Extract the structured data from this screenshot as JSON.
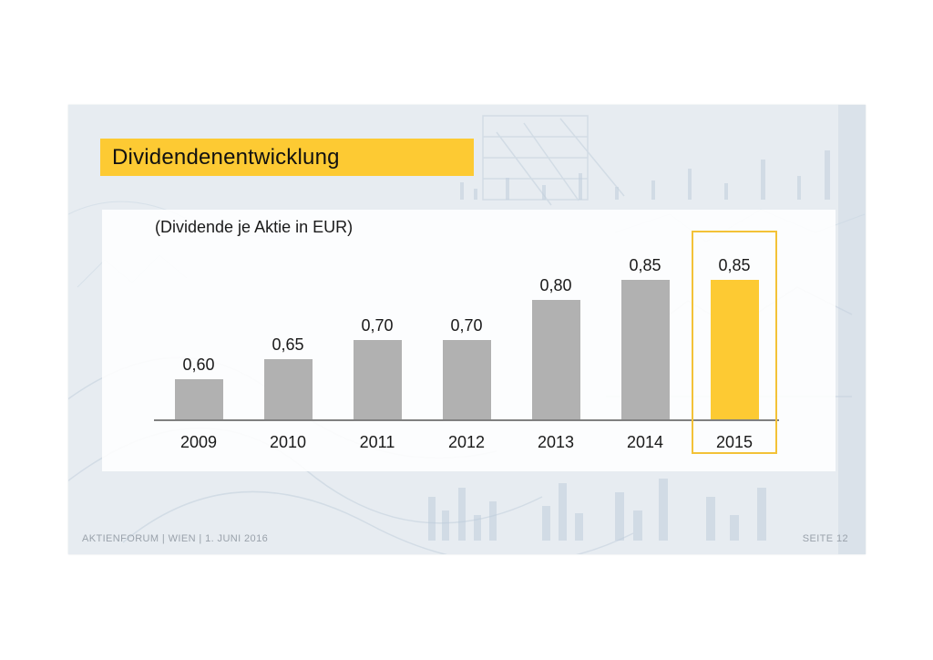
{
  "slide": {
    "title": "Dividendenentwicklung",
    "footer": {
      "left": "AKTIENFORUM | WIEN | 1. JUNI 2016",
      "right": "SEITE 12"
    }
  },
  "colors": {
    "accent_yellow": "#fdca33",
    "highlight_border": "#f3c237",
    "bar_gray": "#b1b1b1",
    "axis_gray": "#808080",
    "slide_background": "#e7ecf1",
    "title_text": "#111111",
    "footer_text": "#9aa2ab"
  },
  "chart_data": {
    "type": "bar",
    "title": "(Dividende je Aktie in EUR)",
    "categories": [
      "2009",
      "2010",
      "2011",
      "2012",
      "2013",
      "2014",
      "2015"
    ],
    "values": [
      0.6,
      0.65,
      0.7,
      0.7,
      0.8,
      0.85,
      0.85
    ],
    "value_labels": [
      "0,60",
      "0,65",
      "0,70",
      "0,70",
      "0,80",
      "0,85",
      "0,85"
    ],
    "highlight_category": "2015",
    "xlabel": "",
    "ylabel": "",
    "ylim": [
      0.5,
      1.026
    ],
    "grid": false,
    "legend": "none",
    "bar_color": "#b1b1b1",
    "highlight_color": "#fdca33"
  }
}
